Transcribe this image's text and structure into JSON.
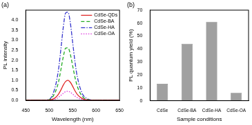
{
  "chart_data": [
    {
      "type": "line",
      "title": "(a)",
      "xlabel": "Wavelength (nm)",
      "ylabel": "PL intensity",
      "x": [
        450,
        480,
        500,
        510,
        515,
        520,
        525,
        530,
        535,
        540,
        545,
        550,
        555,
        560,
        570,
        580,
        600,
        650
      ],
      "series": [
        {
          "name": "CdSe-QDs",
          "color": "#e02828",
          "line_style": "solid",
          "values": [
            0,
            0,
            0.01,
            0.08,
            0.17,
            0.31,
            0.52,
            0.76,
            0.94,
            1.0,
            0.9,
            0.7,
            0.47,
            0.29,
            0.09,
            0.02,
            0,
            0
          ]
        },
        {
          "name": "CdSe-BA",
          "color": "#22aa22",
          "line_style": "dashed",
          "values": [
            0,
            0,
            0.03,
            0.27,
            0.53,
            0.93,
            1.54,
            2.17,
            2.6,
            2.62,
            2.3,
            1.72,
            1.14,
            0.69,
            0.21,
            0.05,
            0,
            0
          ]
        },
        {
          "name": "CdSe-HA",
          "color": "#3333cc",
          "line_style": "dashdot",
          "values": [
            0,
            0,
            0.04,
            0.45,
            0.89,
            1.56,
            2.58,
            3.65,
            4.36,
            4.4,
            3.87,
            2.89,
            1.91,
            1.16,
            0.36,
            0.09,
            0,
            0
          ]
        },
        {
          "name": "CdSe-OA",
          "color": "#dd33dd",
          "line_style": "dotted",
          "values": [
            0,
            0,
            0,
            0.04,
            0.08,
            0.15,
            0.25,
            0.35,
            0.43,
            0.45,
            0.4,
            0.31,
            0.21,
            0.13,
            0.04,
            0.01,
            0,
            0
          ]
        }
      ],
      "xlim": [
        450,
        650
      ],
      "xticks": [
        450,
        500,
        550,
        600,
        650
      ],
      "ylim": [
        0,
        4.5
      ],
      "yticks": [
        {
          "value": 0,
          "label": "0.0"
        },
        {
          "value": 0.5,
          "label": "0.5"
        },
        {
          "value": 1,
          "label": "1.0"
        },
        {
          "value": 1.5,
          "label": "1.5"
        },
        {
          "value": 2,
          "label": "2.0"
        },
        {
          "value": 2.5,
          "label": "2.5"
        },
        {
          "value": 3,
          "label": "3.0"
        },
        {
          "value": 3.5,
          "label": "3.5"
        },
        {
          "value": 4,
          "label": "4.0"
        }
      ],
      "legend": "upper right",
      "grid": false
    },
    {
      "type": "bar",
      "title": "(b)",
      "xlabel": "Sample conditions",
      "ylabel": "PL quantum yield (%)",
      "categories": [
        "CdSe",
        "CdSe-BA",
        "CdSe-HA",
        "CdSe-OA"
      ],
      "values": [
        13,
        44,
        61,
        6
      ],
      "color": "#a0a0a0",
      "ylim": [
        0,
        70
      ],
      "yticks": [
        0,
        10,
        20,
        30,
        40,
        50,
        60,
        70
      ],
      "grid": false
    }
  ]
}
